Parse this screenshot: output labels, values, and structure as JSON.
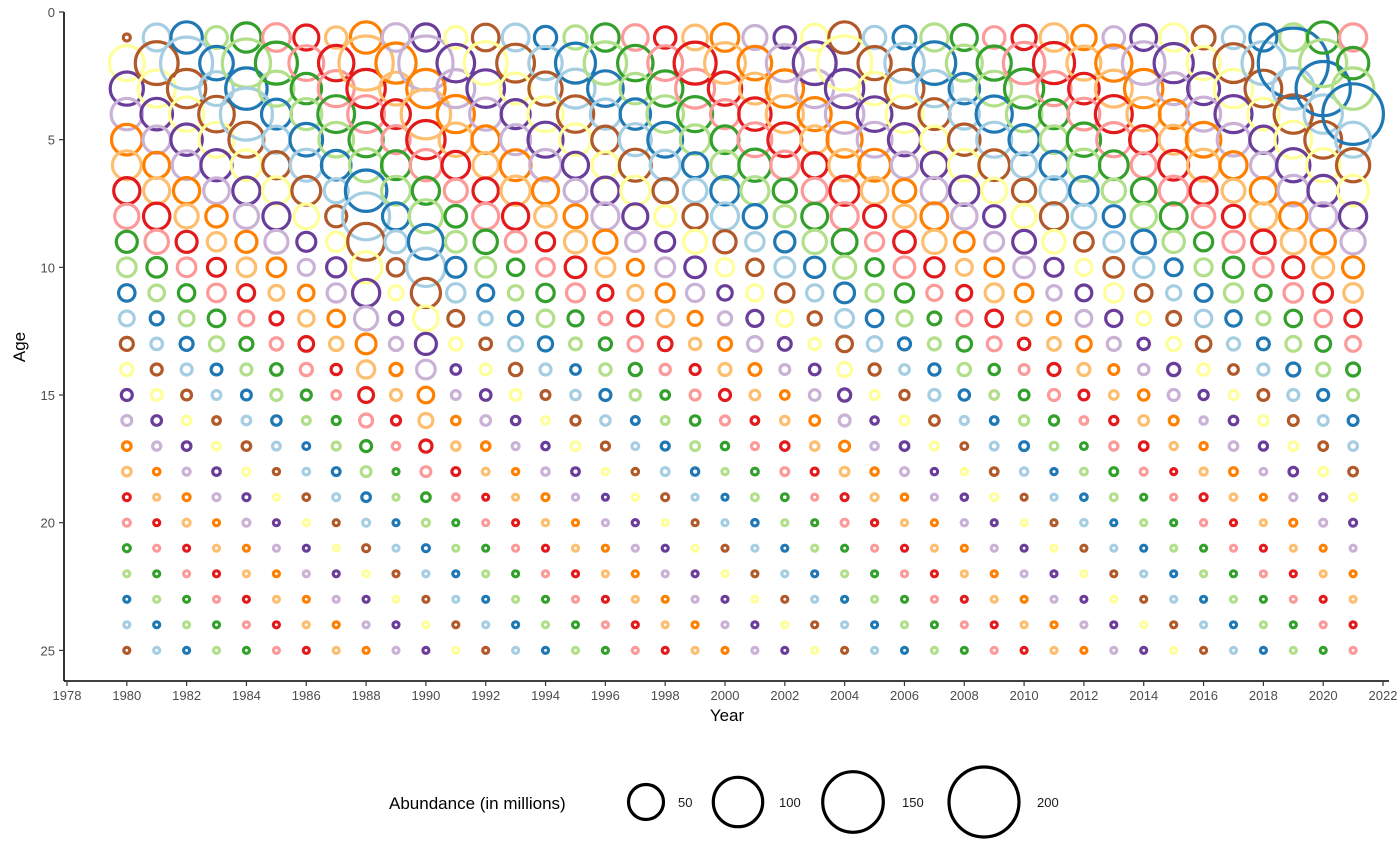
{
  "chart_data": {
    "type": "scatter",
    "subtype": "bubble",
    "title": "",
    "xlabel": "Year",
    "ylabel": "Age",
    "xlim": [
      1977.9,
      2022.2
    ],
    "ylim": [
      26.2,
      0
    ],
    "y_reversed": true,
    "x_ticks": [
      1978,
      1980,
      1982,
      1984,
      1986,
      1988,
      1990,
      1992,
      1994,
      1996,
      1998,
      2000,
      2002,
      2004,
      2006,
      2008,
      2010,
      2012,
      2014,
      2016,
      2018,
      2020,
      2022
    ],
    "y_ticks": [
      0,
      5,
      10,
      15,
      20,
      25
    ],
    "grid": false,
    "years": [
      1980,
      2021
    ],
    "ages": [
      1,
      25
    ],
    "marker": "open-circle",
    "color_by": "cohort (year - age)",
    "palette": [
      "#A6CEE3",
      "#1F78B4",
      "#B2DF8A",
      "#33A02C",
      "#FB9A99",
      "#E31A1C",
      "#FDBF6F",
      "#FF7F00",
      "#CAB2D6",
      "#6A3D9A",
      "#FFFF99",
      "#B15928"
    ],
    "size_legend": {
      "title": "Abundance (in millions)",
      "position": "bottom",
      "values": [
        50,
        100,
        150,
        200
      ],
      "labels": [
        "50",
        "100",
        "150",
        "200"
      ]
    },
    "abundance_note": "Abundance (millions) per year and age, estimated from marker sizes; representative values listed for the large early-age cohorts.",
    "abundance": {
      "1980": [
        2,
        50,
        45,
        40,
        38,
        34,
        28,
        24,
        18,
        14,
        11,
        9,
        7,
        6,
        5,
        4,
        3,
        3,
        2,
        2,
        2,
        1,
        1,
        1,
        1
      ],
      "1982": [
        40,
        110,
        60,
        48,
        40,
        34,
        28,
        22,
        18,
        14,
        11,
        9,
        7,
        5,
        4,
        3,
        3,
        2,
        2,
        2,
        1,
        1,
        1,
        1,
        1
      ],
      "1984": [
        35,
        95,
        70,
        110,
        50,
        38,
        30,
        24,
        18,
        14,
        11,
        9,
        7,
        5,
        4,
        3,
        3,
        2,
        2,
        2,
        1,
        1,
        1,
        1,
        1
      ],
      "1988": [
        40,
        120,
        60,
        55,
        48,
        45,
        70,
        90,
        55,
        40,
        30,
        22,
        16,
        12,
        9,
        7,
        5,
        4,
        3,
        2,
        2,
        1,
        1,
        1,
        1
      ],
      "1990": [
        30,
        120,
        60,
        100,
        60,
        40,
        30,
        45,
        50,
        60,
        35,
        25,
        18,
        14,
        10,
        8,
        6,
        4,
        3,
        2,
        2,
        1,
        1,
        1,
        1
      ],
      "2004": [
        40,
        120,
        60,
        60,
        50,
        40,
        35,
        30,
        25,
        20,
        16,
        13,
        10,
        8,
        6,
        5,
        4,
        3,
        2,
        2,
        1,
        1,
        1,
        1,
        1
      ],
      "2019": [
        30,
        200,
        70,
        60,
        55,
        45,
        38,
        30,
        24,
        18,
        14,
        11,
        9,
        7,
        5,
        4,
        3,
        3,
        2,
        2,
        1,
        1,
        1,
        1,
        1
      ],
      "2020": [
        40,
        90,
        120,
        60,
        55,
        45,
        38,
        30,
        24,
        18,
        14,
        11,
        9,
        7,
        5,
        4,
        3,
        3,
        2,
        2,
        1,
        1,
        1,
        1,
        1
      ],
      "2021": [
        30,
        40,
        70,
        150,
        50,
        45,
        38,
        30,
        24,
        18,
        14,
        11,
        9,
        7,
        5,
        4,
        3,
        3,
        2,
        2,
        1,
        1,
        1,
        1,
        1
      ]
    }
  }
}
